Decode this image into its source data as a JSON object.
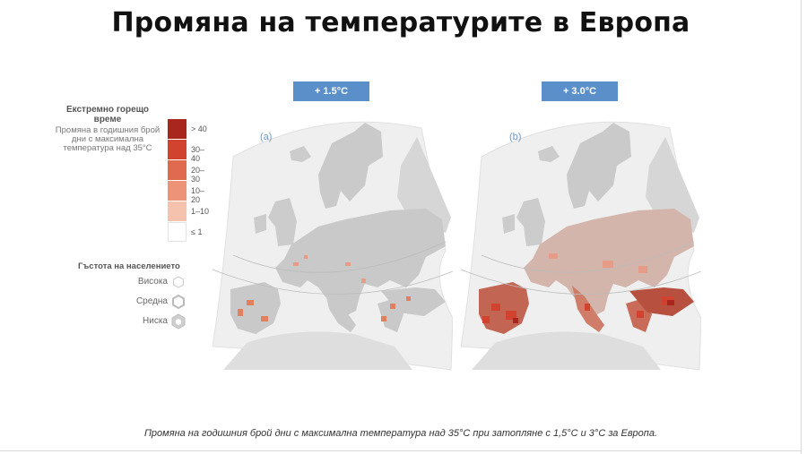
{
  "title": "Промяна на температурите в Европа",
  "legend": {
    "heading": "Екстремно горещо време",
    "subheading": "Промяна в годишния брой дни с максимална температура над 35°C",
    "classes": [
      {
        "label": "> 40",
        "color": "#a8261e"
      },
      {
        "label": "30–40",
        "color": "#d2432f"
      },
      {
        "label": "20–30",
        "color": "#e06a4f"
      },
      {
        "label": "10–20",
        "color": "#ec9378"
      },
      {
        "label": "1–10",
        "color": "#f5c2ad"
      },
      {
        "label": "≤ 1",
        "color": "#ffffff"
      }
    ],
    "population_heading": "Гъстота на населението",
    "population": [
      {
        "label": "Висока",
        "icon": "hexagon-small-icon"
      },
      {
        "label": "Средна",
        "icon": "hexagon-medium-icon"
      },
      {
        "label": "Ниска",
        "icon": "hexagon-large-icon"
      }
    ]
  },
  "panels": [
    {
      "letter": "(a)",
      "scenario": "+ 1.5°C"
    },
    {
      "letter": "(b)",
      "scenario": "+ 3.0°C"
    }
  ],
  "caption": "Промяна на годишния брой дни с максимална температура над 35°C при затопляне с 1,5°C и 3°C за Европа.",
  "colors": {
    "badge": "#5b8fc9",
    "land": "#c9c9c9",
    "frame": "#e6e6e6"
  }
}
